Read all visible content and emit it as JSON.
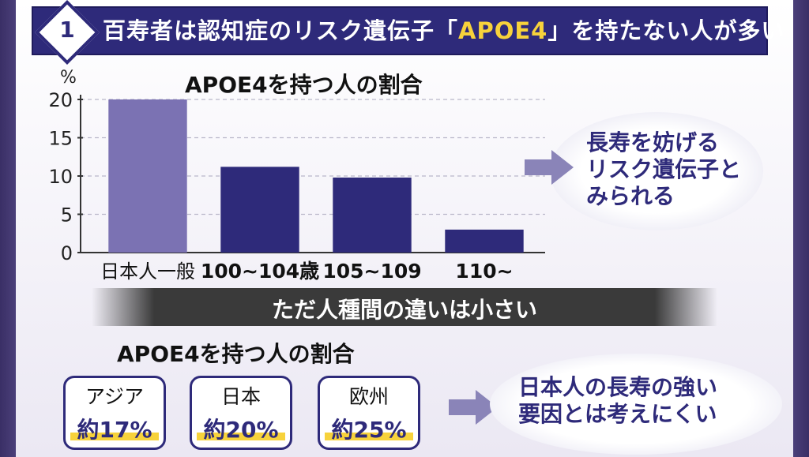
{
  "header": {
    "number": "1",
    "title_before": "百寿者は認知症のリスク遺伝子「",
    "title_highlight": "APOE4",
    "title_after": "」を持たない人が多い"
  },
  "chart_data": {
    "type": "bar",
    "title": "APOE4を持つ人の割合",
    "yunit": "%",
    "categories": [
      "日本人一般",
      "100~104歳",
      "105~109",
      "110~"
    ],
    "values": [
      20,
      11.2,
      9.8,
      3
    ],
    "ylim": [
      0,
      20
    ],
    "yticks": [
      0,
      5,
      10,
      15,
      20
    ],
    "colors": [
      "#7b72b3",
      "#2e2a7a",
      "#2e2a7a",
      "#2e2a7a"
    ]
  },
  "callout1": {
    "lines": [
      "長寿を妨げる",
      "リスク遺伝子と",
      "みられる"
    ]
  },
  "band": {
    "text": "ただ人種間の違いは小さい"
  },
  "regions": {
    "title": "APOE4を持つ人の割合",
    "items": [
      {
        "name": "アジア",
        "value": "約17%"
      },
      {
        "name": "日本",
        "value": "約20%"
      },
      {
        "name": "欧州",
        "value": "約25%"
      }
    ]
  },
  "callout2": {
    "lines": [
      "日本人の長寿の強い",
      "要因とは考えにくい"
    ]
  },
  "colors": {
    "navy": "#2e2a7a",
    "accent": "#f7d23b",
    "light_bar": "#7b72b3"
  }
}
